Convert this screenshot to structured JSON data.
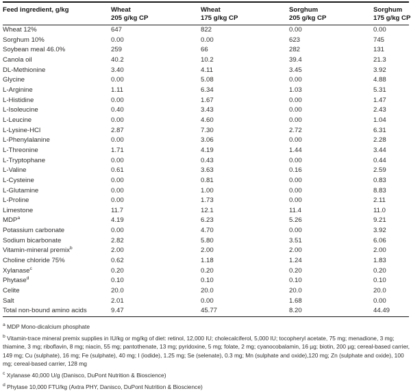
{
  "table": {
    "header": {
      "col0": "Feed ingredient, g/kg",
      "columns": [
        {
          "line1": "Wheat",
          "line2": "205 g/kg CP"
        },
        {
          "line1": "Wheat",
          "line2": "175 g/kg CP"
        },
        {
          "line1": "Sorghum",
          "line2": "205 g/kg CP"
        },
        {
          "line1": "Sorghum",
          "line2": "175 g/kg CP"
        }
      ]
    },
    "rows": [
      {
        "label": "Wheat 12%",
        "sup": "",
        "values": [
          "647",
          "822",
          "0.00",
          "0.00"
        ]
      },
      {
        "label": "Sorghum 10%",
        "sup": "",
        "values": [
          "0.00",
          "0.00",
          "623",
          "745"
        ]
      },
      {
        "label": "Soybean meal 46.0%",
        "sup": "",
        "values": [
          "259",
          "66",
          "282",
          "131"
        ]
      },
      {
        "label": "Canola oil",
        "sup": "",
        "values": [
          "40.2",
          "10.2",
          "39.4",
          "21.3"
        ]
      },
      {
        "label": "DL-Methionine",
        "sup": "",
        "values": [
          "3.40",
          "4.11",
          "3.45",
          "3.92"
        ]
      },
      {
        "label": "Glycine",
        "sup": "",
        "values": [
          "0.00",
          "5.08",
          "0.00",
          "4.88"
        ]
      },
      {
        "label": "L-Arginine",
        "sup": "",
        "values": [
          "1.11",
          "6.34",
          "1.03",
          "5.31"
        ]
      },
      {
        "label": "L-Histidine",
        "sup": "",
        "values": [
          "0.00",
          "1.67",
          "0.00",
          "1.47"
        ]
      },
      {
        "label": "L-Isoleucine",
        "sup": "",
        "values": [
          "0.40",
          "3.43",
          "0.00",
          "2.43"
        ]
      },
      {
        "label": "L-Leucine",
        "sup": "",
        "values": [
          "0.00",
          "4.60",
          "0.00",
          "1.04"
        ]
      },
      {
        "label": "L-Lysine-HCl",
        "sup": "",
        "values": [
          "2.87",
          "7.30",
          "2.72",
          "6.31"
        ]
      },
      {
        "label": "L-Phenylalanine",
        "sup": "",
        "values": [
          "0.00",
          "3.06",
          "0.00",
          "2.28"
        ]
      },
      {
        "label": "L-Threonine",
        "sup": "",
        "values": [
          "1.71",
          "4.19",
          "1.44",
          "3.44"
        ]
      },
      {
        "label": "L-Tryptophane",
        "sup": "",
        "values": [
          "0.00",
          "0.43",
          "0.00",
          "0.44"
        ]
      },
      {
        "label": "L-Valine",
        "sup": "",
        "values": [
          "0.61",
          "3.63",
          "0.16",
          "2.59"
        ]
      },
      {
        "label": "L-Cysteine",
        "sup": "",
        "values": [
          "0.00",
          "0.81",
          "0.00",
          "0.83"
        ]
      },
      {
        "label": "L-Glutamine",
        "sup": "",
        "values": [
          "0.00",
          "1.00",
          "0.00",
          "8.83"
        ]
      },
      {
        "label": "L-Proline",
        "sup": "",
        "values": [
          "0.00",
          "1.73",
          "0.00",
          "2.11"
        ]
      },
      {
        "label": "Limestone",
        "sup": "",
        "values": [
          "11.7",
          "12.1",
          "11.4",
          "11.0"
        ]
      },
      {
        "label": "MDP",
        "sup": "a",
        "values": [
          "4.19",
          "6.23",
          "5.26",
          "9.21"
        ]
      },
      {
        "label": "Potassium carbonate",
        "sup": "",
        "values": [
          "0.00",
          "4.70",
          "0.00",
          "3.92"
        ]
      },
      {
        "label": "Sodium bicarbonate",
        "sup": "",
        "values": [
          "2.82",
          "5.80",
          "3.51",
          "6.06"
        ]
      },
      {
        "label": "Vitamin-mineral premix",
        "sup": "b",
        "values": [
          "2.00",
          "2.00",
          "2.00",
          "2.00"
        ]
      },
      {
        "label": "Choline chloride 75%",
        "sup": "",
        "values": [
          "0.62",
          "1.18",
          "1.24",
          "1.83"
        ]
      },
      {
        "label": "Xylanase",
        "sup": "c",
        "values": [
          "0.20",
          "0.20",
          "0.20",
          "0.20"
        ]
      },
      {
        "label": "Phytase",
        "sup": "d",
        "values": [
          "0.10",
          "0.10",
          "0.10",
          "0.10"
        ]
      },
      {
        "label": "Celite",
        "sup": "",
        "values": [
          "20.0",
          "20.0",
          "20.0",
          "20.0"
        ]
      },
      {
        "label": "Salt",
        "sup": "",
        "values": [
          "2.01",
          "0.00",
          "1.68",
          "0.00"
        ]
      },
      {
        "label": "Total non-bound amino acids",
        "sup": "",
        "values": [
          "9.47",
          "45.77",
          "8.20",
          "44.49"
        ]
      }
    ]
  },
  "footnotes": [
    {
      "marker": "a",
      "text": "MDP Mono-dicalcium phosphate"
    },
    {
      "marker": "b",
      "text": "Vitamin-trace mineral premix supplies in IU/kg or mg/kg of diet: retinol, 12,000 IU; cholecalciferol, 5,000 IU; tocopheryl acetate, 75 mg; menadione, 3 mg; thiamine, 3 mg; riboflavin, 8 mg; niacin, 55 mg; pantothenate, 13 mg; pyridoxine, 5 mg; folate, 2 mg; cyanocobalamin, 16 µg; biotin, 200 µg; cereal-based carrier, 149 mg; Cu (sulphate), 16 mg; Fe (sulphate), 40 mg; I (iodide), 1.25 mg; Se (selenate), 0.3 mg; Mn (sulphate and oxide),120 mg; Zn (sulphate and oxide), 100 mg; cereal-based carrier, 128 mg"
    },
    {
      "marker": "c",
      "text": "Xylanase 40,000 U/g (Danisco, DuPont Nutrition & Bioscience)"
    },
    {
      "marker": "d",
      "text": "Phytase 10,000 FTU/kg (Axtra PHY, Danisco, DuPont Nutrition & Bioscience)"
    }
  ],
  "colors": {
    "text": "#2e2c2b",
    "rule": "#161616",
    "background": "#ffffff"
  }
}
